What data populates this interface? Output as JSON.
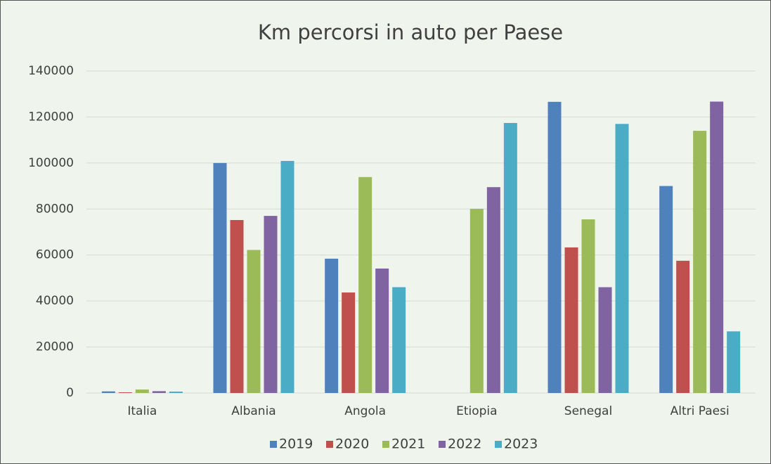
{
  "chart_data": {
    "type": "bar",
    "title": "Km percorsi in auto per Paese",
    "categories": [
      "Italia",
      "Albania",
      "Angola",
      "Etiopia",
      "Senegal",
      "Altri Paesi"
    ],
    "series": [
      {
        "name": "2019",
        "color": "#4f81bd",
        "values": [
          700,
          100000,
          58400,
          0,
          126600,
          90000
        ]
      },
      {
        "name": "2020",
        "color": "#c0504d",
        "values": [
          300,
          75200,
          43700,
          0,
          63300,
          57500
        ]
      },
      {
        "name": "2021",
        "color": "#9bbb59",
        "values": [
          1500,
          62200,
          93900,
          80100,
          75500,
          114000
        ]
      },
      {
        "name": "2022",
        "color": "#8064a2",
        "values": [
          800,
          77000,
          54100,
          89500,
          46000,
          126700
        ]
      },
      {
        "name": "2023",
        "color": "#4bacc6",
        "values": [
          600,
          100900,
          46000,
          117400,
          117000,
          26800
        ]
      }
    ],
    "ylim": [
      0,
      140000
    ],
    "yticks": [
      0,
      20000,
      40000,
      60000,
      80000,
      100000,
      120000,
      140000
    ],
    "grid": true,
    "legend": "bottom"
  }
}
